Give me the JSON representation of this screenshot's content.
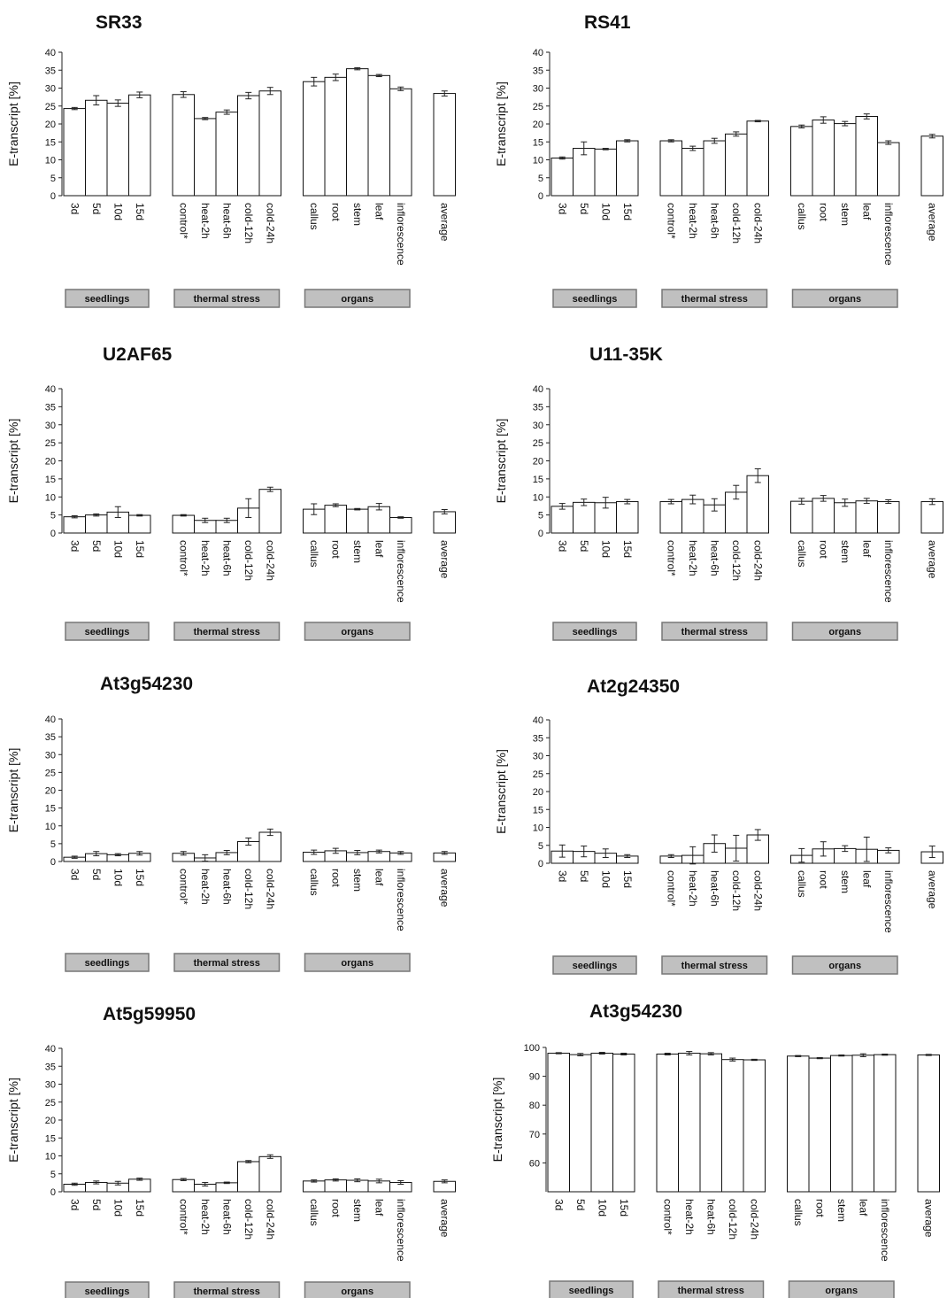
{
  "groups": [
    {
      "label": "seedlings",
      "start": 0,
      "end": 3
    },
    {
      "label": "thermal stress",
      "start": 4,
      "end": 8
    },
    {
      "label": "organs",
      "start": 9,
      "end": 13
    }
  ],
  "colors": {
    "bar_fill": "#ffffff",
    "bar_stroke": "#111111",
    "group_box": "#c0c0c0",
    "group_box_edge": "#777777"
  },
  "chart_data": [
    {
      "type": "bar",
      "title": "SR33",
      "ylabel": "E-transcript [%]",
      "ylim": [
        0,
        40
      ],
      "yticks": [
        0,
        5,
        10,
        15,
        20,
        25,
        30,
        35,
        40
      ],
      "categories": [
        "3d",
        "5d",
        "10d",
        "15d",
        "control*",
        "heat-2h",
        "heat-6h",
        "cold-12h",
        "cold-24h",
        "callus",
        "root",
        "stem",
        "leaf",
        "inflorescence",
        "average"
      ],
      "values": [
        24.3,
        26.6,
        25.8,
        28.1,
        28.2,
        21.5,
        23.3,
        27.9,
        29.2,
        31.8,
        33.0,
        35.4,
        33.5,
        29.8,
        28.5
      ],
      "errors": [
        0.3,
        1.3,
        0.9,
        0.8,
        0.8,
        0.3,
        0.6,
        0.9,
        1.0,
        1.2,
        0.9,
        0.3,
        0.3,
        0.5,
        0.7
      ]
    },
    {
      "type": "bar",
      "title": "RS41",
      "ylabel": "E-transcript [%]",
      "ylim": [
        0,
        40
      ],
      "yticks": [
        0,
        5,
        10,
        15,
        20,
        25,
        30,
        35,
        40
      ],
      "categories": [
        "3d",
        "5d",
        "10d",
        "15d",
        "control*",
        "heat-2h",
        "heat-6h",
        "cold-12h",
        "cold-24h",
        "callus",
        "root",
        "stem",
        "leaf",
        "inflorescence",
        "average"
      ],
      "values": [
        10.5,
        13.2,
        13.0,
        15.3,
        15.3,
        13.2,
        15.3,
        17.2,
        20.8,
        19.3,
        21.1,
        20.1,
        22.1,
        14.8,
        16.6
      ],
      "errors": [
        0.3,
        1.8,
        0.2,
        0.3,
        0.3,
        0.6,
        0.7,
        0.6,
        0.2,
        0.4,
        0.9,
        0.6,
        0.7,
        0.5,
        0.5
      ]
    },
    {
      "type": "bar",
      "title": "U2AF65",
      "ylabel": "E-transcript [%]",
      "ylim": [
        0,
        40
      ],
      "yticks": [
        0,
        5,
        10,
        15,
        20,
        25,
        30,
        35,
        40
      ],
      "categories": [
        "3d",
        "5d",
        "10d",
        "15d",
        "control*",
        "heat-2h",
        "heat-6h",
        "cold-12h",
        "cold-24h",
        "callus",
        "root",
        "stem",
        "leaf",
        "inflorescence",
        "average"
      ],
      "values": [
        4.5,
        5.0,
        5.8,
        4.9,
        4.9,
        3.5,
        3.5,
        6.9,
        12.1,
        6.6,
        7.7,
        6.6,
        7.3,
        4.3,
        5.9
      ],
      "errors": [
        0.3,
        0.3,
        1.5,
        0.2,
        0.2,
        0.6,
        0.6,
        2.6,
        0.6,
        1.5,
        0.4,
        0.2,
        0.9,
        0.2,
        0.6
      ]
    },
    {
      "type": "bar",
      "title": "U11-35K",
      "ylabel": "E-transcript [%]",
      "ylim": [
        0,
        40
      ],
      "yticks": [
        0,
        5,
        10,
        15,
        20,
        25,
        30,
        35,
        40
      ],
      "categories": [
        "3d",
        "5d",
        "10d",
        "15d",
        "control*",
        "heat-2h",
        "heat-6h",
        "cold-12h",
        "cold-24h",
        "callus",
        "root",
        "stem",
        "leaf",
        "inflorescence",
        "average"
      ],
      "values": [
        7.4,
        8.5,
        8.4,
        8.7,
        8.7,
        9.3,
        7.8,
        11.3,
        15.9,
        8.8,
        9.6,
        8.4,
        8.9,
        8.7,
        8.7
      ],
      "errors": [
        0.8,
        0.9,
        1.5,
        0.6,
        0.6,
        1.2,
        1.7,
        1.9,
        1.9,
        0.8,
        0.8,
        1.0,
        0.7,
        0.5,
        0.8
      ]
    },
    {
      "type": "bar",
      "title": "At3g54230",
      "ylabel": "E-transcript [%]",
      "ylim": [
        0,
        40
      ],
      "yticks": [
        0,
        5,
        10,
        15,
        20,
        25,
        30,
        35,
        40
      ],
      "categories": [
        "3d",
        "5d",
        "10d",
        "15d",
        "control*",
        "heat-2h",
        "heat-6h",
        "cold-12h",
        "cold-24h",
        "callus",
        "root",
        "stem",
        "leaf",
        "inflorescence",
        "average"
      ],
      "values": [
        1.2,
        2.2,
        1.9,
        2.3,
        2.3,
        1.0,
        2.5,
        5.6,
        8.2,
        2.6,
        3.0,
        2.5,
        2.8,
        2.4,
        2.4
      ],
      "errors": [
        0.3,
        0.6,
        0.3,
        0.5,
        0.5,
        0.9,
        0.6,
        1.0,
        0.9,
        0.6,
        0.7,
        0.6,
        0.4,
        0.4,
        0.4
      ]
    },
    {
      "type": "bar",
      "title": "At2g24350",
      "ylabel": "E-transcript [%]",
      "ylim": [
        0,
        40
      ],
      "yticks": [
        0,
        5,
        10,
        15,
        20,
        25,
        30,
        35,
        40
      ],
      "categories": [
        "3d",
        "5d",
        "10d",
        "15d",
        "control*",
        "heat-2h",
        "heat-6h",
        "cold-12h",
        "cold-24h",
        "callus",
        "root",
        "stem",
        "leaf",
        "inflorescence",
        "average"
      ],
      "values": [
        3.4,
        3.3,
        2.8,
        2.0,
        2.0,
        2.2,
        5.5,
        4.2,
        7.9,
        2.2,
        4.0,
        4.1,
        3.9,
        3.6,
        3.2
      ],
      "errors": [
        1.7,
        1.5,
        1.2,
        0.4,
        0.4,
        2.4,
        2.4,
        3.6,
        1.5,
        1.9,
        2.0,
        0.8,
        3.4,
        0.7,
        1.6
      ]
    },
    {
      "type": "bar",
      "title": "At5g59950",
      "ylabel": "E-transcript [%]",
      "ylim": [
        0,
        40
      ],
      "yticks": [
        0,
        5,
        10,
        15,
        20,
        25,
        30,
        35,
        40
      ],
      "categories": [
        "3d",
        "5d",
        "10d",
        "15d",
        "control*",
        "heat-2h",
        "heat-6h",
        "cold-12h",
        "cold-24h",
        "callus",
        "root",
        "stem",
        "leaf",
        "inflorescence",
        "average"
      ],
      "values": [
        2.1,
        2.6,
        2.4,
        3.5,
        3.4,
        2.1,
        2.5,
        8.4,
        9.8,
        3.0,
        3.3,
        3.2,
        3.0,
        2.6,
        2.9
      ],
      "errors": [
        0.3,
        0.4,
        0.5,
        0.3,
        0.3,
        0.5,
        0.2,
        0.3,
        0.5,
        0.3,
        0.3,
        0.4,
        0.5,
        0.5,
        0.4
      ]
    },
    {
      "type": "bar",
      "title": "At3g54230",
      "ylabel": "E-transcript [%]",
      "ylim": [
        50,
        100
      ],
      "yticks": [
        60,
        70,
        80,
        90,
        100
      ],
      "categories": [
        "3d",
        "5d",
        "10d",
        "15d",
        "control*",
        "heat-2h",
        "heat-6h",
        "cold-12h",
        "cold-24h",
        "callus",
        "root",
        "stem",
        "leaf",
        "inflorescence",
        "average"
      ],
      "values": [
        98.0,
        97.5,
        98.0,
        97.7,
        97.7,
        98.0,
        97.8,
        95.8,
        95.7,
        97.0,
        96.3,
        97.2,
        97.3,
        97.5,
        97.4
      ],
      "errors": [
        0.2,
        0.4,
        0.3,
        0.3,
        0.3,
        0.6,
        0.4,
        0.5,
        0.2,
        0.2,
        0.2,
        0.2,
        0.5,
        0.2,
        0.2
      ]
    }
  ]
}
